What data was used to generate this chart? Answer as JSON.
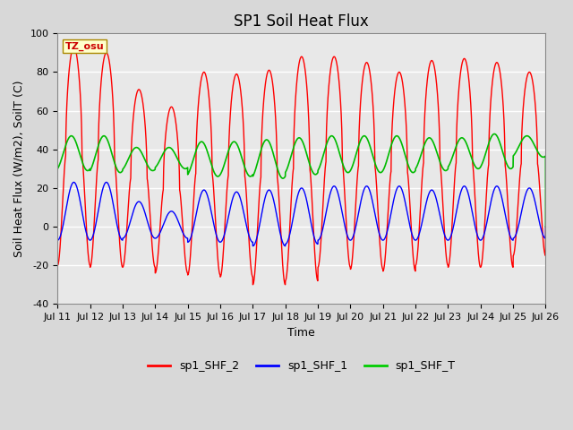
{
  "title": "SP1 Soil Heat Flux",
  "xlabel": "Time",
  "ylabel": "Soil Heat Flux (W/m2), SoilT (C)",
  "ylim": [
    -40,
    100
  ],
  "x_tick_labels": [
    "Jul 11",
    "Jul 12",
    "Jul 13",
    "Jul 14",
    "Jul 15",
    "Jul 16",
    "Jul 17",
    "Jul 18",
    "Jul 19",
    "Jul 20",
    "Jul 21",
    "Jul 22",
    "Jul 23",
    "Jul 24",
    "Jul 25",
    "Jul 26"
  ],
  "legend_labels": [
    "sp1_SHF_2",
    "sp1_SHF_1",
    "sp1_SHF_T"
  ],
  "legend_colors": [
    "#ff0000",
    "#0000ff",
    "#00cc00"
  ],
  "tz_label": "TZ_osu",
  "background_color": "#d8d8d8",
  "plot_bg_color": "#e8e8e8",
  "grid_color": "#ffffff",
  "title_fontsize": 12,
  "label_fontsize": 9,
  "tick_fontsize": 8,
  "shf2_color": "#ff0000",
  "shf1_color": "#0000ff",
  "shft_color": "#00bb00",
  "shf2_peaks": [
    93,
    90,
    71,
    62,
    80,
    79,
    81,
    88,
    88,
    85,
    80,
    86,
    87,
    85,
    80
  ],
  "shf2_troughs": [
    -20,
    -21,
    -21,
    -24,
    -25,
    -26,
    -30,
    -28,
    -21,
    -22,
    -23,
    -20,
    -21,
    -21,
    -15
  ],
  "shf1_peaks": [
    23,
    23,
    13,
    8,
    19,
    18,
    19,
    20,
    21,
    21,
    21,
    19,
    21,
    21,
    20
  ],
  "shf1_troughs": [
    -7,
    -7,
    -6,
    -6,
    -8,
    -8,
    -10,
    -9,
    -7,
    -7,
    -7,
    -7,
    -7,
    -7,
    -6
  ],
  "shft_peaks": [
    47,
    47,
    41,
    41,
    44,
    44,
    45,
    46,
    47,
    47,
    47,
    46,
    46,
    48,
    47
  ],
  "shft_troughs": [
    29,
    28,
    29,
    30,
    26,
    26,
    25,
    27,
    28,
    28,
    28,
    29,
    30,
    30,
    36
  ]
}
